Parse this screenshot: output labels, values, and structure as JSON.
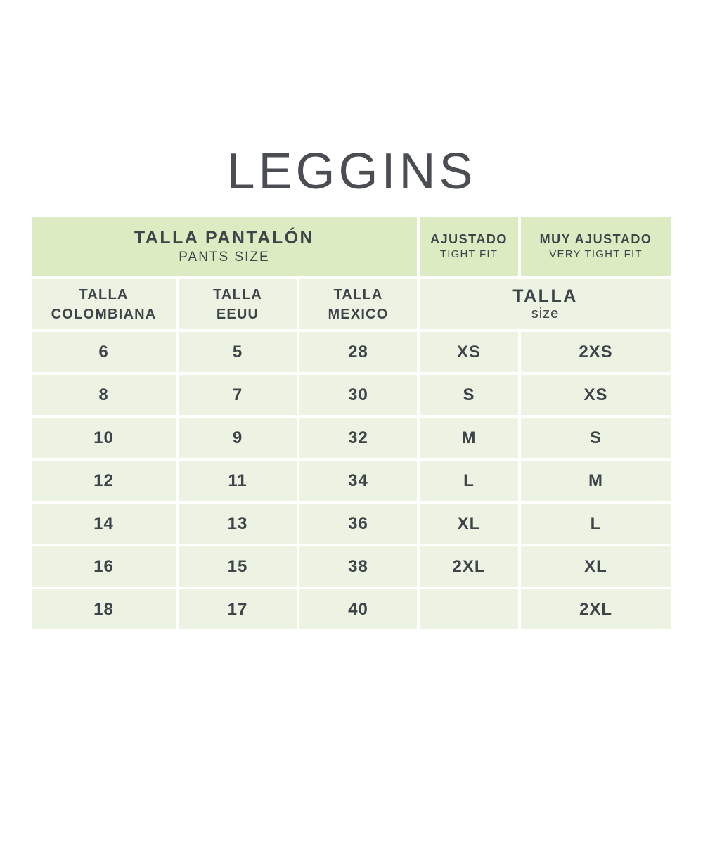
{
  "page": {
    "title": "LEGGINS"
  },
  "colors": {
    "header_bg": "#dcebc2",
    "cell_bg": "#edf3e2",
    "text": "#3e444a",
    "gutter": "#ffffff",
    "title_text": "#4a4e52"
  },
  "table": {
    "header_row1": {
      "pants_size": {
        "line1": "TALLA PANTALÓN",
        "line2": "PANTS SIZE"
      },
      "tight_fit": {
        "line1": "AJUSTADO",
        "line2": "TIGHT FIT"
      },
      "very_tight_fit": {
        "line1": "MUY AJUSTADO",
        "line2": "VERY TIGHT FIT"
      }
    },
    "header_row2": {
      "col_colombia": {
        "line1": "TALLA",
        "line2": "COLOMBIANA"
      },
      "col_eeuu": {
        "line1": "TALLA",
        "line2": "EEUU"
      },
      "col_mexico": {
        "line1": "TALLA",
        "line2": "MEXICO"
      },
      "col_size": {
        "line1": "TALLA",
        "line2": "size"
      }
    },
    "rows": [
      [
        "6",
        "5",
        "28",
        "XS",
        "2XS"
      ],
      [
        "8",
        "7",
        "30",
        "S",
        "XS"
      ],
      [
        "10",
        "9",
        "32",
        "M",
        "S"
      ],
      [
        "12",
        "11",
        "34",
        "L",
        "M"
      ],
      [
        "14",
        "13",
        "36",
        "XL",
        "L"
      ],
      [
        "16",
        "15",
        "38",
        "2XL",
        "XL"
      ],
      [
        "18",
        "17",
        "40",
        "",
        "2XL"
      ]
    ]
  }
}
